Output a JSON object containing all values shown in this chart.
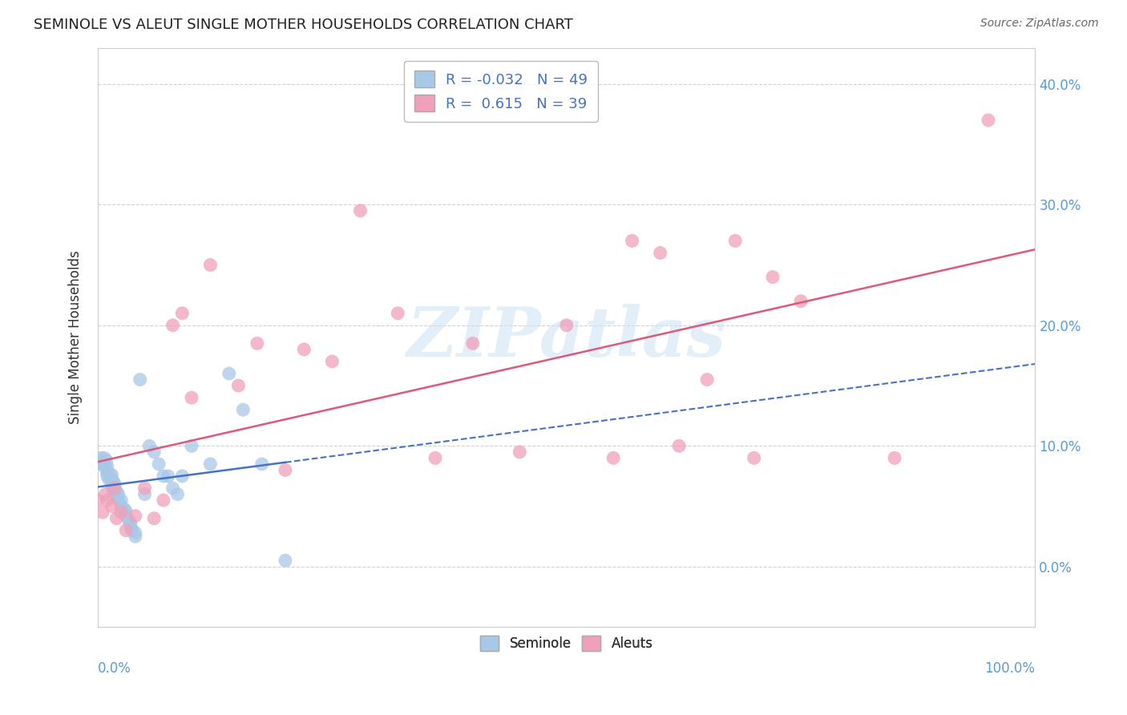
{
  "title": "SEMINOLE VS ALEUT SINGLE MOTHER HOUSEHOLDS CORRELATION CHART",
  "source": "Source: ZipAtlas.com",
  "ylabel": "Single Mother Households",
  "watermark": "ZIPatlas",
  "seminole": {
    "label": "Seminole",
    "R": -0.032,
    "N": 49,
    "color": "#a8c8e8",
    "line_color": "#4472c4",
    "x": [
      0.0,
      0.003,
      0.005,
      0.007,
      0.008,
      0.009,
      0.01,
      0.01,
      0.01,
      0.012,
      0.013,
      0.015,
      0.015,
      0.015,
      0.016,
      0.017,
      0.018,
      0.018,
      0.02,
      0.02,
      0.022,
      0.022,
      0.025,
      0.025,
      0.028,
      0.03,
      0.03,
      0.033,
      0.035,
      0.035,
      0.037,
      0.04,
      0.04,
      0.045,
      0.05,
      0.055,
      0.06,
      0.065,
      0.07,
      0.075,
      0.08,
      0.085,
      0.09,
      0.1,
      0.12,
      0.14,
      0.155,
      0.175,
      0.2
    ],
    "y": [
      0.085,
      0.09,
      0.085,
      0.09,
      0.082,
      0.088,
      0.075,
      0.078,
      0.083,
      0.072,
      0.076,
      0.068,
      0.072,
      0.076,
      0.065,
      0.07,
      0.063,
      0.068,
      0.058,
      0.062,
      0.055,
      0.06,
      0.05,
      0.055,
      0.048,
      0.042,
      0.046,
      0.038,
      0.035,
      0.032,
      0.03,
      0.025,
      0.028,
      0.155,
      0.06,
      0.1,
      0.095,
      0.085,
      0.075,
      0.075,
      0.065,
      0.06,
      0.075,
      0.1,
      0.085,
      0.16,
      0.13,
      0.085,
      0.005
    ]
  },
  "aleuts": {
    "label": "Aleuts",
    "R": 0.615,
    "N": 39,
    "color": "#f0a0b8",
    "line_color": "#e05878",
    "x": [
      0.0,
      0.005,
      0.008,
      0.01,
      0.015,
      0.018,
      0.02,
      0.025,
      0.03,
      0.04,
      0.05,
      0.06,
      0.07,
      0.08,
      0.09,
      0.1,
      0.12,
      0.15,
      0.17,
      0.2,
      0.22,
      0.25,
      0.28,
      0.32,
      0.36,
      0.4,
      0.45,
      0.5,
      0.55,
      0.57,
      0.6,
      0.62,
      0.65,
      0.68,
      0.7,
      0.72,
      0.75,
      0.85,
      0.95
    ],
    "y": [
      0.055,
      0.045,
      0.06,
      0.055,
      0.05,
      0.065,
      0.04,
      0.045,
      0.03,
      0.042,
      0.065,
      0.04,
      0.055,
      0.2,
      0.21,
      0.14,
      0.25,
      0.15,
      0.185,
      0.08,
      0.18,
      0.17,
      0.295,
      0.21,
      0.09,
      0.185,
      0.095,
      0.2,
      0.09,
      0.27,
      0.26,
      0.1,
      0.155,
      0.27,
      0.09,
      0.24,
      0.22,
      0.09,
      0.37
    ]
  },
  "xlim": [
    0.0,
    1.0
  ],
  "ylim": [
    -0.05,
    0.43
  ],
  "yticks": [
    0.0,
    0.1,
    0.2,
    0.3,
    0.4
  ],
  "ytick_labels": [
    "0.0%",
    "10.0%",
    "20.0%",
    "30.0%",
    "40.0%"
  ],
  "xtick_left_label": "0.0%",
  "xtick_right_label": "100.0%",
  "grid_color": "#cccccc",
  "background_color": "#ffffff",
  "title_color": "#222222",
  "axis_label_color": "#333333",
  "tick_label_color": "#5b9bd5",
  "source_color": "#666666",
  "legend_R_color": "#4472c4",
  "legend_border_color": "#aaaaaa",
  "seminole_line_solid_end": 0.2,
  "watermark_color": "#d0e4f4",
  "watermark_alpha": 0.6
}
